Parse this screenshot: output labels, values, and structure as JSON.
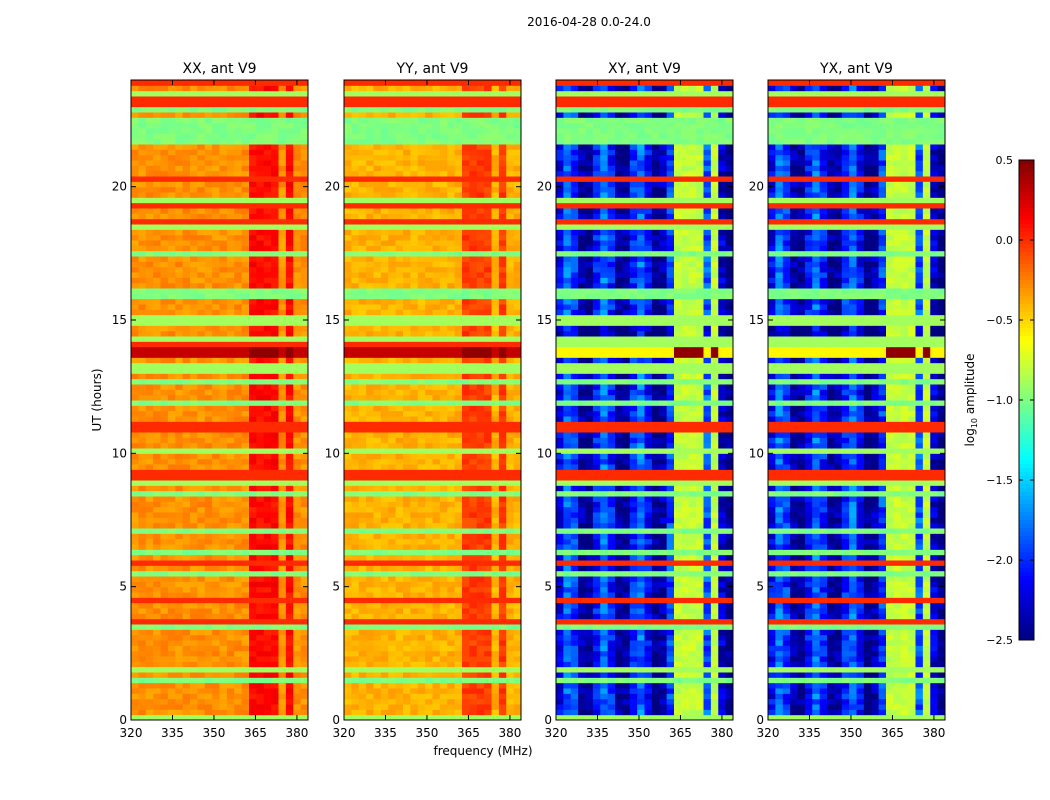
{
  "chart_data": {
    "type": "heatmap",
    "suptitle": "2016-04-28 0.0-24.0",
    "xlabel": "frequency (MHz)",
    "ylabel": "UT (hours)",
    "xlim": [
      320,
      384
    ],
    "ylim": [
      0,
      24
    ],
    "xticks": [
      "320",
      "335",
      "350",
      "365",
      "380"
    ],
    "xtick_values": [
      320,
      335,
      350,
      365,
      380
    ],
    "yticks": [
      "0",
      "5",
      "10",
      "15",
      "20"
    ],
    "ytick_values": [
      0,
      5,
      10,
      15,
      20
    ],
    "panels": [
      {
        "title": "XX, ant V9",
        "base_log_amp": -0.3,
        "rfi_log_amp": 0.1
      },
      {
        "title": "YY, ant V9",
        "base_log_amp": -0.4,
        "rfi_log_amp": -0.05
      },
      {
        "title": "XY, ant V9",
        "base_log_amp": -2.15,
        "rfi_log_amp": -0.8
      },
      {
        "title": "YX, ant V9",
        "base_log_amp": -2.15,
        "rfi_log_amp": -0.8
      }
    ],
    "rfi_channels_mhz": [
      [
        362,
        365.5
      ],
      [
        366.5,
        369.5
      ],
      [
        371.5,
        374.5
      ],
      [
        376.5,
        379.5
      ]
    ],
    "flagged_bands_hours": [
      [
        1.4,
        1.6
      ],
      [
        3.4,
        3.6
      ],
      [
        5.4,
        5.6
      ],
      [
        6.2,
        6.4
      ],
      [
        7.0,
        7.2
      ],
      [
        8.4,
        8.6
      ],
      [
        11.8,
        12.0
      ],
      [
        12.6,
        12.8
      ],
      [
        15.8,
        16.2
      ],
      [
        17.4,
        17.6
      ],
      [
        21.6,
        22.6
      ],
      [
        22.8,
        23.0
      ]
    ],
    "flagged_log_amp": -1.0,
    "strong_rfi_hours": [
      [
        13.6,
        13.9
      ]
    ],
    "strong_rfi_log_amp": 0.45,
    "colorbar": {
      "label": "log10 amplitude",
      "label_main": "log",
      "label_sub": "10",
      "label_rest": " amplitude",
      "range": [
        -2.5,
        0.5
      ],
      "ticks": [
        "0.5",
        "0.0",
        "−0.5",
        "−1.0",
        "−1.5",
        "−2.0",
        "−2.5"
      ],
      "tick_values": [
        0.5,
        0.0,
        -0.5,
        -1.0,
        -1.5,
        -2.0,
        -2.5
      ],
      "colormap": "jet"
    }
  }
}
